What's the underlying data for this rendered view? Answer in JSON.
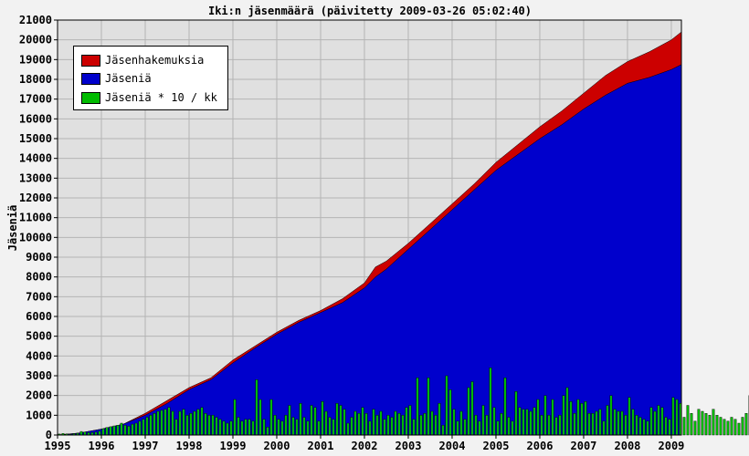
{
  "chart_data": {
    "type": "area",
    "title": "Iki:n jäsenmäärä (päivitetty 2009-03-26 05:02:40)",
    "xlabel": "",
    "ylabel": "Jäseniä",
    "xlim": [
      1995,
      2009.23
    ],
    "ylim": [
      0,
      21000
    ],
    "yticks": [
      0,
      1000,
      2000,
      3000,
      4000,
      5000,
      6000,
      7000,
      8000,
      9000,
      10000,
      11000,
      12000,
      13000,
      14000,
      15000,
      16000,
      17000,
      18000,
      19000,
      20000,
      21000
    ],
    "xticks": [
      "1995",
      "1996",
      "1997",
      "1998",
      "1999",
      "2000",
      "2001",
      "2002",
      "2003",
      "2004",
      "2005",
      "2006",
      "2007",
      "2008",
      "2009"
    ],
    "grid": true,
    "legend_position": "top-left",
    "colors": {
      "applications": "#cc0000",
      "members": "#0000cc",
      "monthly": "#00bb00",
      "plot_bg": "#e0e0e0",
      "page_bg": "#f2f2f2"
    },
    "series": [
      {
        "name": "Jäsenhakemuksia",
        "x": [
          1995.0,
          1995.5,
          1996.0,
          1996.5,
          1997.0,
          1997.5,
          1998.0,
          1998.5,
          1999.0,
          1999.5,
          2000.0,
          2000.5,
          2001.0,
          2001.5,
          2002.0,
          2002.25,
          2002.5,
          2003.0,
          2003.5,
          2004.0,
          2004.5,
          2005.0,
          2005.5,
          2006.0,
          2006.5,
          2007.0,
          2007.5,
          2008.0,
          2008.5,
          2009.0,
          2009.23
        ],
        "values": [
          0,
          100,
          300,
          550,
          1100,
          1750,
          2400,
          2900,
          3800,
          4500,
          5200,
          5800,
          6300,
          6900,
          7700,
          8500,
          8800,
          9700,
          10700,
          11700,
          12700,
          13800,
          14700,
          15600,
          16400,
          17300,
          18200,
          18900,
          19400,
          20000,
          20400
        ]
      },
      {
        "name": "Jäseniä",
        "x": [
          1995.0,
          1995.5,
          1996.0,
          1996.5,
          1997.0,
          1997.5,
          1998.0,
          1998.5,
          1999.0,
          1999.5,
          2000.0,
          2000.5,
          2001.0,
          2001.5,
          2002.0,
          2002.25,
          2002.5,
          2003.0,
          2003.5,
          2004.0,
          2004.5,
          2005.0,
          2005.5,
          2006.0,
          2006.5,
          2007.0,
          2007.5,
          2008.0,
          2008.5,
          2009.0,
          2009.23
        ],
        "values": [
          0,
          100,
          300,
          550,
          1000,
          1600,
          2300,
          2800,
          3650,
          4400,
          5100,
          5700,
          6200,
          6700,
          7450,
          8000,
          8400,
          9400,
          10400,
          11400,
          12400,
          13400,
          14200,
          15000,
          15700,
          16500,
          17200,
          17800,
          18100,
          18500,
          18750
        ]
      },
      {
        "name": "Jäseniä * 10 / kk",
        "monthly_values": [
          50,
          80,
          60,
          40,
          70,
          90,
          180,
          150,
          120,
          130,
          150,
          200,
          320,
          380,
          420,
          460,
          500,
          600,
          500,
          450,
          550,
          600,
          700,
          800,
          900,
          1000,
          1100,
          1200,
          1250,
          1300,
          1400,
          1200,
          800,
          1200,
          1300,
          1000,
          1100,
          1200,
          1300,
          1400,
          1100,
          1000,
          1000,
          900,
          800,
          700,
          600,
          700,
          1800,
          900,
          700,
          800,
          800,
          700,
          2800,
          1800,
          800,
          400,
          1800,
          1000,
          800,
          700,
          1000,
          1500,
          900,
          800,
          1600,
          900,
          700,
          1500,
          1400,
          700,
          1700,
          1200,
          900,
          800,
          1600,
          1500,
          1300,
          600,
          900,
          1200,
          1100,
          1400,
          1100,
          700,
          1300,
          1000,
          1200,
          800,
          1000,
          900,
          1200,
          1100,
          1000,
          1400,
          1500,
          800,
          2900,
          1000,
          1100,
          2900,
          1200,
          1000,
          1600,
          500,
          3000,
          2300,
          1300,
          700,
          1200,
          800,
          2400,
          2700,
          1000,
          700,
          1500,
          1000,
          3400,
          1400,
          700,
          1100,
          2900,
          900,
          700,
          2200,
          1400,
          1300,
          1300,
          1200,
          1400,
          1800,
          1000,
          2000,
          1000,
          1800,
          900,
          1000,
          2000,
          2400,
          1700,
          1100,
          1800,
          1600,
          1700,
          1100,
          1100,
          1200,
          1300,
          700,
          1500,
          2000,
          1300,
          1200,
          1200,
          1000,
          1900,
          1300,
          1000,
          900,
          800,
          700,
          1400,
          1200,
          1500,
          1400,
          900,
          800,
          1900,
          1800,
          1600,
          900,
          1500,
          1100,
          700,
          1300,
          1200,
          1100,
          1000,
          1300,
          1000,
          900,
          800,
          700,
          900,
          800,
          600,
          900,
          1100,
          2000,
          700,
          500,
          800,
          900,
          900,
          800
        ]
      }
    ]
  }
}
